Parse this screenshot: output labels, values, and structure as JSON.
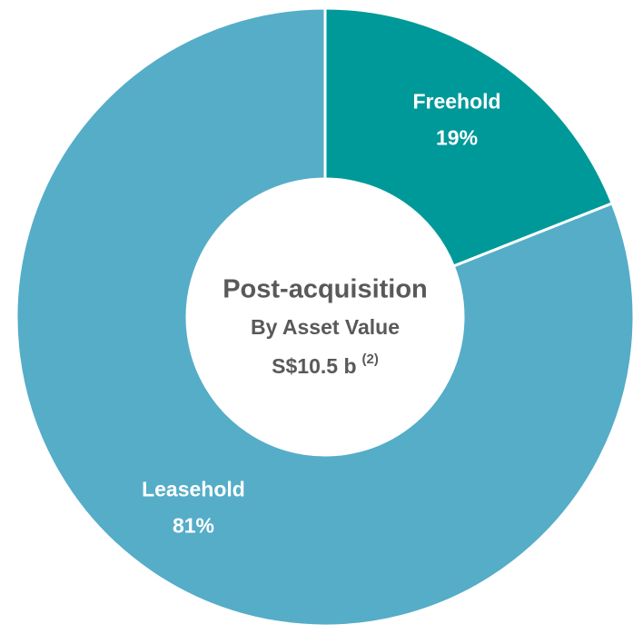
{
  "chart_data": {
    "type": "donut",
    "categories": [
      "Freehold",
      "Leasehold"
    ],
    "values": [
      19,
      81
    ],
    "value_labels": [
      "19%",
      "81%"
    ],
    "colors": [
      "#009999",
      "#55adc8"
    ],
    "center_title": "Post-acquisition",
    "center_subtitle": "By Asset Value",
    "center_value": "S$10.5 b",
    "center_note": "(2)"
  }
}
